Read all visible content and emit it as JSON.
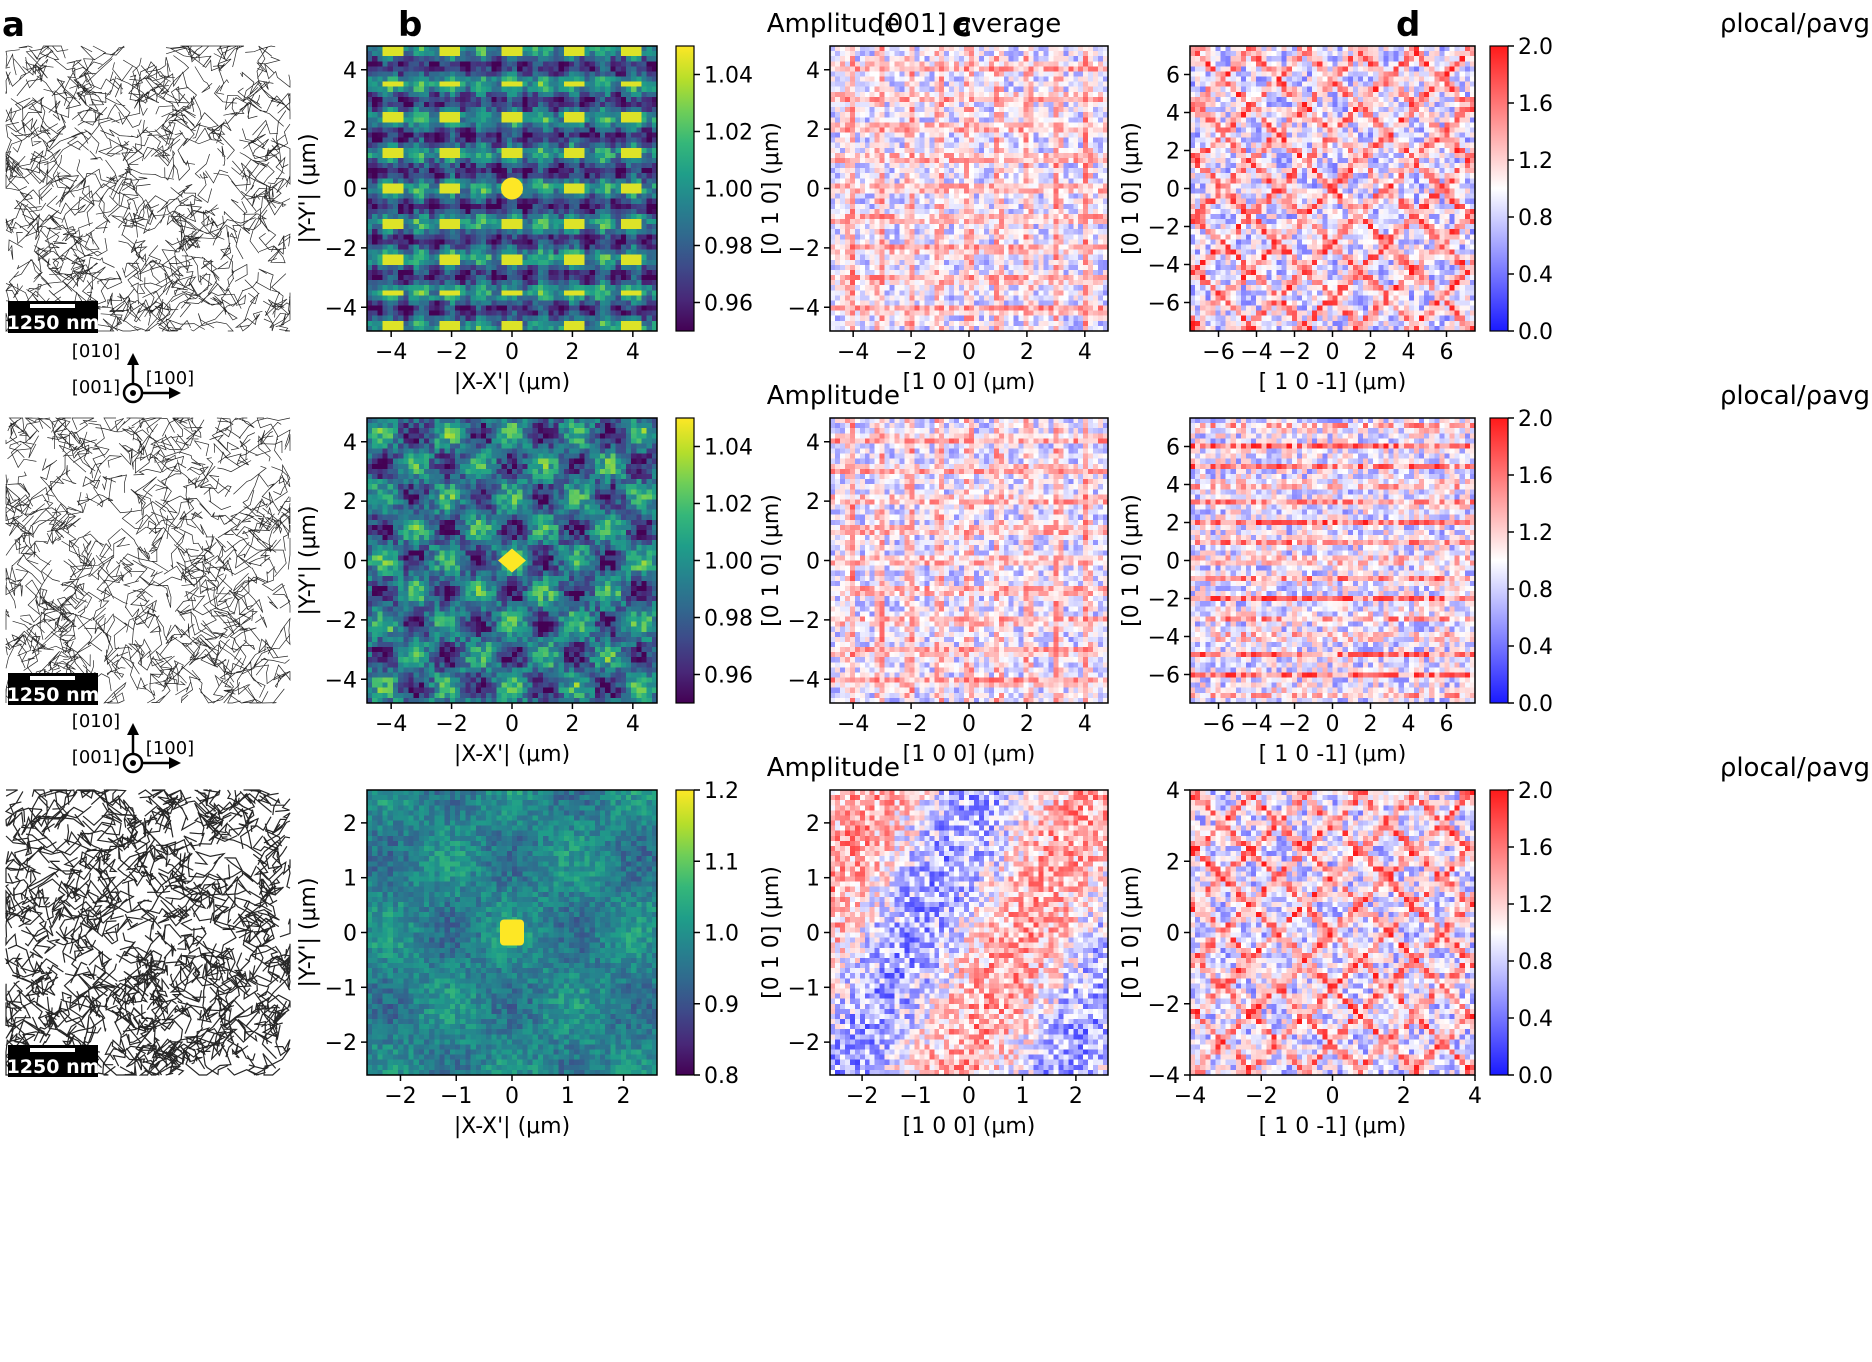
{
  "figure": {
    "panel_letters": [
      "a",
      "b",
      "c",
      "d"
    ],
    "scale_bar_label": "1250 nm",
    "axes_labels": {
      "dir_010": "[010]",
      "dir_100": "[100]",
      "dir_001": "[001]"
    }
  },
  "colors": {
    "viridis": [
      "#440154",
      "#482878",
      "#3e4989",
      "#31688e",
      "#26828e",
      "#1f9e89",
      "#35b779",
      "#6ece58",
      "#b5de2b",
      "#fde725"
    ],
    "bwr_low": "#1a1aff",
    "bwr_mid": "#ffffff",
    "bwr_high": "#ff1a1a",
    "axis": "#000000"
  },
  "chart_data": [
    {
      "id": "b-top",
      "type": "heatmap",
      "colormap": "viridis",
      "title": "Amplitude",
      "xlabel": "|X-X'| (μm)",
      "ylabel": "|Y-Y'| (μm)",
      "xlim": [
        -4.8,
        4.8
      ],
      "ylim": [
        -4.8,
        4.8
      ],
      "xticks": [
        -4,
        -2,
        0,
        2,
        4
      ],
      "yticks": [
        -4,
        -2,
        0,
        2,
        4
      ],
      "colorbar": {
        "min": 0.95,
        "max": 1.05,
        "ticks": [
          0.96,
          0.98,
          1.0,
          1.02,
          1.04
        ],
        "tick_labels": [
          "0.96",
          "0.98",
          "1.00",
          "1.02",
          "1.04"
        ],
        "label": ""
      },
      "pattern": "lattice",
      "center_peak": "circle",
      "seed": 11
    },
    {
      "id": "b-mid",
      "type": "heatmap",
      "colormap": "viridis",
      "title": "Amplitude",
      "xlabel": "|X-X'| (μm)",
      "ylabel": "|Y-Y'| (μm)",
      "xlim": [
        -4.8,
        4.8
      ],
      "ylim": [
        -4.8,
        4.8
      ],
      "xticks": [
        -4,
        -2,
        0,
        2,
        4
      ],
      "yticks": [
        -4,
        -2,
        0,
        2,
        4
      ],
      "colorbar": {
        "min": 0.95,
        "max": 1.05,
        "ticks": [
          0.96,
          0.98,
          1.0,
          1.02,
          1.04
        ],
        "tick_labels": [
          "0.96",
          "0.98",
          "1.00",
          "1.02",
          "1.04"
        ],
        "label": ""
      },
      "pattern": "diagonal",
      "center_peak": "diamond",
      "seed": 23
    },
    {
      "id": "b-bot",
      "type": "heatmap",
      "colormap": "viridis",
      "title": "Amplitude",
      "xlabel": "|X-X'| (μm)",
      "ylabel": "|Y-Y'| (μm)",
      "xlim": [
        -2.6,
        2.6
      ],
      "ylim": [
        -2.6,
        2.6
      ],
      "xticks": [
        -2,
        -1,
        0,
        1,
        2
      ],
      "yticks": [
        -2,
        -1,
        0,
        1,
        2
      ],
      "colorbar": {
        "min": 0.8,
        "max": 1.2,
        "ticks": [
          0.8,
          0.9,
          1.0,
          1.1,
          1.2
        ],
        "tick_labels": [
          "0.8",
          "0.9",
          "1.0",
          "1.1",
          "1.2"
        ],
        "label": ""
      },
      "pattern": "blobs",
      "center_peak": "square",
      "seed": 37
    },
    {
      "id": "c-top",
      "type": "heatmap",
      "colormap": "bwr",
      "title": "[001] average",
      "xlabel": "[1 0 0] (μm)",
      "ylabel": "[0 1 0] (μm)",
      "xlim": [
        -4.8,
        4.8
      ],
      "ylim": [
        -4.8,
        4.8
      ],
      "xticks": [
        -4,
        -2,
        0,
        2,
        4
      ],
      "yticks": [
        -4,
        -2,
        0,
        2,
        4
      ],
      "colorbar": null,
      "pattern": "grid",
      "seed": 51
    },
    {
      "id": "c-mid",
      "type": "heatmap",
      "colormap": "bwr",
      "title": "",
      "xlabel": "[1 0 0] (μm)",
      "ylabel": "[0 1 0] (μm)",
      "xlim": [
        -4.8,
        4.8
      ],
      "ylim": [
        -4.8,
        4.8
      ],
      "xticks": [
        -4,
        -2,
        0,
        2,
        4
      ],
      "yticks": [
        -4,
        -2,
        0,
        2,
        4
      ],
      "colorbar": null,
      "pattern": "grid",
      "seed": 63
    },
    {
      "id": "c-bot",
      "type": "heatmap",
      "colormap": "bwr",
      "title": "",
      "xlabel": "[1 0 0] (μm)",
      "ylabel": "[0 1 0] (μm)",
      "xlim": [
        -2.6,
        2.6
      ],
      "ylim": [
        -2.6,
        2.6
      ],
      "xticks": [
        -2,
        -1,
        0,
        1,
        2
      ],
      "yticks": [
        -2,
        -1,
        0,
        1,
        2
      ],
      "colorbar": null,
      "pattern": "coarse",
      "seed": 77
    },
    {
      "id": "d-top",
      "type": "heatmap",
      "colormap": "bwr",
      "title": "ρlocal/ρavg",
      "xlabel": "[ 1  0 -1] (μm)",
      "ylabel": "[0 1 0] (μm)",
      "xlim": [
        -7.5,
        7.5
      ],
      "ylim": [
        -7.5,
        7.5
      ],
      "xticks": [
        -6,
        -4,
        -2,
        0,
        2,
        4,
        6
      ],
      "yticks": [
        -6,
        -4,
        -2,
        0,
        2,
        4,
        6
      ],
      "colorbar": {
        "min": 0.0,
        "max": 2.0,
        "ticks": [
          0.0,
          0.4,
          0.8,
          1.2,
          1.6,
          2.0
        ],
        "tick_labels": [
          "0.0",
          "0.4",
          "0.8",
          "1.2",
          "1.6",
          "2.0"
        ],
        "label": "ρlocal/ρavg"
      },
      "pattern": "streaks",
      "seed": 89
    },
    {
      "id": "d-mid",
      "type": "heatmap",
      "colormap": "bwr",
      "title": "ρlocal/ρavg",
      "xlabel": "[ 1  0 -1] (μm)",
      "ylabel": "[0 1 0] (μm)",
      "xlim": [
        -7.5,
        7.5
      ],
      "ylim": [
        -7.5,
        7.5
      ],
      "xticks": [
        -6,
        -4,
        -2,
        0,
        2,
        4,
        6
      ],
      "yticks": [
        -6,
        -4,
        -2,
        0,
        2,
        4,
        6
      ],
      "colorbar": {
        "min": 0.0,
        "max": 2.0,
        "ticks": [
          0.0,
          0.4,
          0.8,
          1.2,
          1.6,
          2.0
        ],
        "tick_labels": [
          "0.0",
          "0.4",
          "0.8",
          "1.2",
          "1.6",
          "2.0"
        ],
        "label": "ρlocal/ρavg"
      },
      "pattern": "rows",
      "seed": 97
    },
    {
      "id": "d-bot",
      "type": "heatmap",
      "colormap": "bwr",
      "title": "ρlocal/ρavg",
      "xlabel": "[ 1  0 -1] (μm)",
      "ylabel": "[0 1 0] (μm)",
      "xlim": [
        -4,
        4
      ],
      "ylim": [
        -4,
        4
      ],
      "xticks": [
        -4,
        -2,
        0,
        2,
        4
      ],
      "yticks": [
        -4,
        -2,
        0,
        2,
        4
      ],
      "colorbar": {
        "min": 0.0,
        "max": 2.0,
        "ticks": [
          0.0,
          0.4,
          0.8,
          1.2,
          1.6,
          2.0
        ],
        "tick_labels": [
          "0.0",
          "0.4",
          "0.8",
          "1.2",
          "1.6",
          "2.0"
        ],
        "label": "ρlocal/ρavg"
      },
      "pattern": "streaks",
      "seed": 103
    }
  ]
}
